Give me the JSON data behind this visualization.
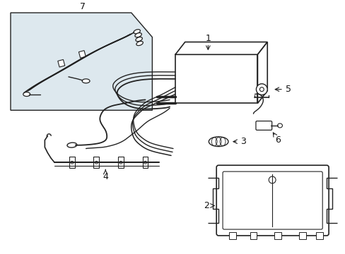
{
  "background_color": "#ffffff",
  "line_color": "#222222",
  "label_color": "#111111",
  "inset_bg": "#dde8ee",
  "label_fontsize": 9,
  "fig_width": 4.89,
  "fig_height": 3.6,
  "dpi": 100
}
